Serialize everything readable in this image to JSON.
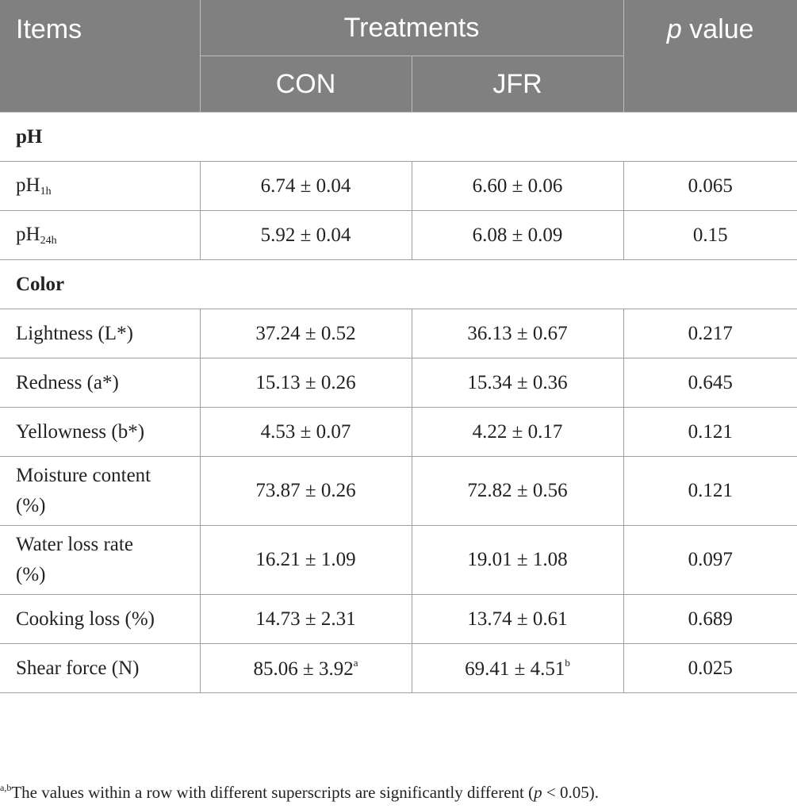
{
  "header": {
    "items": "Items",
    "treatments": "Treatments",
    "p_prefix": "p",
    "p_suffix": " value",
    "con": "CON",
    "jfr": "JFR"
  },
  "sections": {
    "ph": "pH",
    "color": "Color"
  },
  "rows": {
    "ph1h": {
      "label": "pH",
      "label_sub": "1h",
      "con": "6.74 ± 0.04",
      "jfr": "6.60 ± 0.06",
      "p": "0.065"
    },
    "ph24h": {
      "label": "pH",
      "label_sub": "24h",
      "con": "5.92 ± 0.04",
      "jfr": "6.08 ± 0.09",
      "p": "0.15"
    },
    "lightness": {
      "label": "Lightness (L*)",
      "con": "37.24 ± 0.52",
      "jfr": "36.13 ± 0.67",
      "p": "0.217"
    },
    "redness": {
      "label": "Redness (a*)",
      "con": "15.13 ± 0.26",
      "jfr": "15.34 ± 0.36",
      "p": "0.645"
    },
    "yellowness": {
      "label": "Yellowness (b*)",
      "con": "4.53 ± 0.07",
      "jfr": "4.22 ± 0.17",
      "p": "0.121"
    },
    "moisture": {
      "label_line1": "Moisture content",
      "label_line2": "(%)",
      "con": "73.87 ± 0.26",
      "jfr": "72.82 ± 0.56",
      "p": "0.121"
    },
    "water_loss": {
      "label_line1": "Water loss rate",
      "label_line2": "(%)",
      "con": "16.21 ± 1.09",
      "jfr": "19.01 ± 1.08",
      "p": "0.097"
    },
    "cooking_loss": {
      "label": "Cooking loss (%)",
      "con": "14.73 ± 2.31",
      "jfr": "13.74 ± 0.61",
      "p": "0.689"
    },
    "shear_force": {
      "label": "Shear force (N)",
      "con": "85.06 ± 3.92",
      "con_sup": "a",
      "jfr": "69.41 ± 4.51",
      "jfr_sup": "b",
      "p": "0.025"
    }
  },
  "footnote": {
    "sup": "a,b",
    "text_before": "The values within a row with different superscripts are significantly different (",
    "p": "p",
    "text_after": " < 0.05)."
  }
}
